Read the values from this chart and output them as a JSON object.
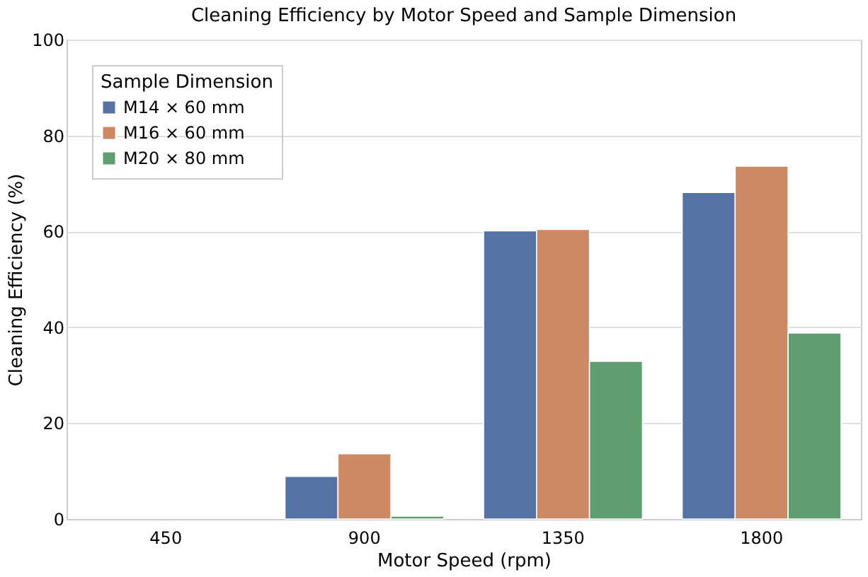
{
  "chart_data": {
    "type": "bar",
    "title": "Cleaning Efficiency by Motor Speed and Sample Dimension",
    "xlabel": "Motor Speed (rpm)",
    "ylabel": "Cleaning Efficiency (%)",
    "legend_title": "Sample Dimension",
    "categories": [
      "450",
      "900",
      "1350",
      "1800"
    ],
    "series": [
      {
        "name": "M14 × 60 mm",
        "color": "#5572a4",
        "values": [
          null,
          8.9,
          60.1,
          68.1
        ]
      },
      {
        "name": "M16 × 60 mm",
        "color": "#cc8963",
        "values": [
          null,
          13.6,
          60.4,
          73.6
        ]
      },
      {
        "name": "M20 × 80 mm",
        "color": "#5f9e6e",
        "values": [
          null,
          0.6,
          32.9,
          38.8
        ]
      }
    ],
    "ylim": [
      0,
      100
    ],
    "yticks": [
      0,
      20,
      40,
      60,
      80,
      100
    ],
    "grid": "y",
    "legend": "top left"
  }
}
